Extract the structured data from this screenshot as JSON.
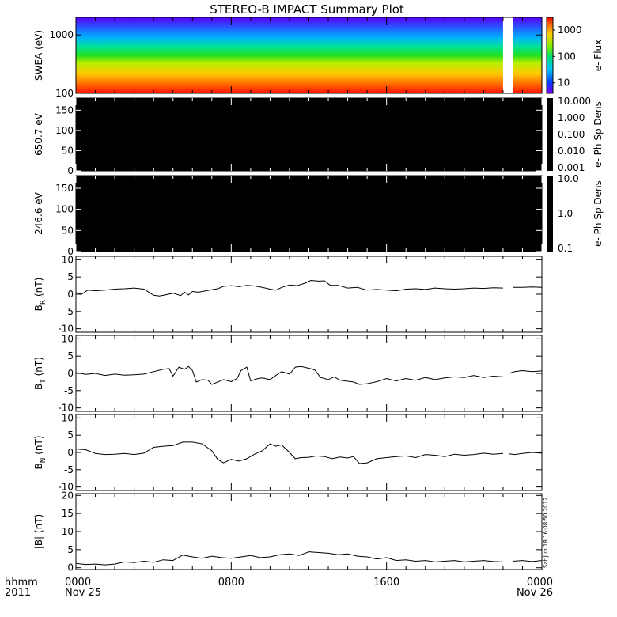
{
  "title": "STEREO-B IMPACT Summary Plot",
  "x_axis": {
    "tick_labels": [
      "0000",
      "0800",
      "1600",
      "0000"
    ],
    "tick_hours": [
      0,
      8,
      16,
      24
    ],
    "minor_every_hours": 1,
    "date_labels": [
      "Nov 25",
      "Nov 26"
    ],
    "date_hours": [
      0,
      24
    ],
    "left_label_top": "hhmm",
    "left_label_bottom": "2011"
  },
  "timestamp": "Sat Jun 18 16:08:50 2012",
  "colors": {
    "spectrogram_low": "#ff0000",
    "spectrogram_high": "#4a00ff",
    "gap": "#ffffff",
    "trace": "#000000"
  },
  "chart_data": [
    {
      "type": "heatmap",
      "name": "swea-spectrogram",
      "ylabel": "SWEA (eV)",
      "yscale": "log",
      "ylim": [
        100,
        2000
      ],
      "ytick_labels": [
        "100",
        "1000"
      ],
      "ytick_values": [
        100,
        1000
      ],
      "colorbar_label": "e- Flux",
      "colorbar_scale": "log",
      "colorbar_range": [
        4,
        3000
      ],
      "colorbar_tick_labels": [
        "10",
        "100",
        "1000"
      ],
      "colorbar_tick_values": [
        10,
        100,
        1000
      ],
      "data_gap_hours": [
        22.0,
        22.5
      ],
      "xlim_hours": [
        0,
        24
      ]
    },
    {
      "type": "heatmap",
      "name": "pitch-angle-650",
      "ylabel": "650.7 eV",
      "ylim": [
        0,
        180
      ],
      "ytick_labels": [
        "0",
        "50",
        "100",
        "150"
      ],
      "ytick_values": [
        0,
        50,
        100,
        150
      ],
      "colorbar_label": "e- Ph Sp Dens",
      "colorbar_tick_labels": [
        "10.000",
        "1.000",
        "0.100",
        "0.010",
        "0.001"
      ],
      "fill": "#000000"
    },
    {
      "type": "heatmap",
      "name": "pitch-angle-246",
      "ylabel": "246.6 eV",
      "ylim": [
        0,
        180
      ],
      "ytick_labels": [
        "0",
        "50",
        "100",
        "150"
      ],
      "ytick_values": [
        0,
        50,
        100,
        150
      ],
      "colorbar_label": "e- Ph Sp Dens",
      "colorbar_tick_labels": [
        "10.0",
        "1.0",
        "0.1"
      ],
      "fill": "#000000"
    },
    {
      "type": "line",
      "name": "br",
      "ylabel": "B",
      "ylabel_sub": "R",
      "ylabel_unit": "(nT)",
      "ylim": [
        -11,
        11
      ],
      "ytick_labels": [
        "-10",
        "-5",
        "0",
        "5",
        "10"
      ],
      "ytick_values": [
        -10,
        -5,
        0,
        5,
        10
      ],
      "x": [
        0,
        0.3,
        0.6,
        1.0,
        1.5,
        2.0,
        2.5,
        3.0,
        3.5,
        4.0,
        4.3,
        4.6,
        5.0,
        5.4,
        5.6,
        5.8,
        6.0,
        6.3,
        6.7,
        7.0,
        7.3,
        7.6,
        8.0,
        8.4,
        8.8,
        9.2,
        9.6,
        10.0,
        10.3,
        10.6,
        11.0,
        11.4,
        11.8,
        12.1,
        12.5,
        12.8,
        13.1,
        13.5,
        14.0,
        14.5,
        15.0,
        15.5,
        16.0,
        16.5,
        17.0,
        17.5,
        18.0,
        18.5,
        19.0,
        19.5,
        20.0,
        20.5,
        21.0,
        21.5,
        22.0,
        null,
        22.5,
        23.0,
        23.5,
        24.0
      ],
      "y": [
        0.5,
        0.0,
        1.2,
        1.0,
        1.2,
        1.5,
        1.6,
        1.8,
        1.5,
        -0.3,
        -0.5,
        -0.2,
        0.3,
        -0.4,
        0.6,
        -0.2,
        0.8,
        0.6,
        1.0,
        1.3,
        1.6,
        2.3,
        2.5,
        2.2,
        2.6,
        2.4,
        2.0,
        1.5,
        1.2,
        2.0,
        2.7,
        2.5,
        3.2,
        4.0,
        3.8,
        3.9,
        2.6,
        2.6,
        1.8,
        2.0,
        1.2,
        1.4,
        1.2,
        1.0,
        1.5,
        1.6,
        1.4,
        1.8,
        1.6,
        1.5,
        1.6,
        1.8,
        1.7,
        1.9,
        1.8,
        null,
        2.0,
        2.0,
        2.1,
        2.0
      ]
    },
    {
      "type": "line",
      "name": "bt",
      "ylabel": "B",
      "ylabel_sub": "T",
      "ylabel_unit": "(nT)",
      "ylim": [
        -11,
        11
      ],
      "ytick_labels": [
        "-10",
        "-5",
        "0",
        "5",
        "10"
      ],
      "ytick_values": [
        -10,
        -5,
        0,
        5,
        10
      ],
      "x": [
        0,
        0.5,
        1.0,
        1.5,
        2.0,
        2.5,
        3.0,
        3.5,
        4.0,
        4.5,
        4.8,
        5.0,
        5.3,
        5.6,
        5.8,
        6.0,
        6.2,
        6.5,
        6.8,
        7.0,
        7.3,
        7.6,
        8.0,
        8.3,
        8.5,
        8.8,
        9.0,
        9.3,
        9.6,
        10.0,
        10.3,
        10.6,
        11.0,
        11.3,
        11.6,
        12.0,
        12.3,
        12.6,
        13.0,
        13.3,
        13.6,
        14.0,
        14.3,
        14.6,
        15.0,
        15.5,
        16.0,
        16.5,
        17.0,
        17.5,
        18.0,
        18.5,
        19.0,
        19.5,
        20.0,
        20.5,
        21.0,
        21.5,
        22.0,
        null,
        22.3,
        22.6,
        23.0,
        23.5,
        24.0
      ],
      "y": [
        0.2,
        -0.3,
        0.0,
        -0.6,
        -0.2,
        -0.5,
        -0.4,
        -0.2,
        0.5,
        1.2,
        1.4,
        -0.8,
        1.8,
        1.2,
        2.0,
        0.8,
        -2.5,
        -1.8,
        -2.0,
        -3.2,
        -2.5,
        -1.8,
        -2.4,
        -1.5,
        0.8,
        1.8,
        -2.2,
        -1.6,
        -1.3,
        -1.8,
        -0.6,
        0.5,
        -0.2,
        1.8,
        2.0,
        1.5,
        1.0,
        -1.2,
        -1.8,
        -1.0,
        -2.0,
        -2.3,
        -2.5,
        -3.2,
        -3.0,
        -2.4,
        -1.5,
        -2.2,
        -1.5,
        -2.0,
        -1.2,
        -1.8,
        -1.3,
        -1.0,
        -1.2,
        -0.6,
        -1.2,
        -0.8,
        -1.0,
        null,
        0.0,
        0.5,
        0.8,
        0.5,
        0.7
      ]
    },
    {
      "type": "line",
      "name": "bn",
      "ylabel": "B",
      "ylabel_sub": "N",
      "ylabel_unit": "(nT)",
      "ylim": [
        -11,
        11
      ],
      "ytick_labels": [
        "-10",
        "-5",
        "0",
        "5",
        "10"
      ],
      "ytick_values": [
        -10,
        -5,
        0,
        5,
        10
      ],
      "x": [
        0,
        0.5,
        1.0,
        1.5,
        2.0,
        2.5,
        3.0,
        3.5,
        4.0,
        4.5,
        5.0,
        5.5,
        6.0,
        6.5,
        7.0,
        7.3,
        7.6,
        8.0,
        8.4,
        8.8,
        9.2,
        9.6,
        10.0,
        10.3,
        10.6,
        11.0,
        11.3,
        11.6,
        12.0,
        12.4,
        12.8,
        13.2,
        13.6,
        14.0,
        14.3,
        14.6,
        15.0,
        15.5,
        16.0,
        16.5,
        17.0,
        17.5,
        18.0,
        18.5,
        19.0,
        19.5,
        20.0,
        20.5,
        21.0,
        21.5,
        22.0,
        null,
        22.3,
        22.6,
        23.0,
        23.5,
        24.0
      ],
      "y": [
        1.0,
        0.8,
        -0.3,
        -0.6,
        -0.5,
        -0.3,
        -0.6,
        -0.2,
        1.5,
        1.8,
        2.0,
        3.0,
        3.0,
        2.5,
        0.5,
        -2.0,
        -3.0,
        -2.0,
        -2.5,
        -1.8,
        -0.5,
        0.5,
        2.5,
        1.8,
        2.2,
        0.0,
        -1.8,
        -1.5,
        -1.4,
        -1.0,
        -1.2,
        -1.8,
        -1.3,
        -1.6,
        -1.2,
        -3.2,
        -3.0,
        -1.8,
        -1.5,
        -1.2,
        -1.0,
        -1.5,
        -0.6,
        -0.8,
        -1.2,
        -0.5,
        -0.8,
        -0.6,
        -0.2,
        -0.5,
        -0.3,
        null,
        -0.4,
        -0.6,
        -0.3,
        0.0,
        -0.2
      ]
    },
    {
      "type": "line",
      "name": "bmag",
      "ylabel": "|B| (nT)",
      "ylim": [
        -0.5,
        20.5
      ],
      "ytick_labels": [
        "0",
        "5",
        "10",
        "15",
        "20"
      ],
      "ytick_values": [
        0,
        5,
        10,
        15,
        20
      ],
      "x": [
        0,
        0.5,
        1.0,
        1.5,
        2.0,
        2.5,
        3.0,
        3.5,
        4.0,
        4.5,
        5.0,
        5.5,
        6.0,
        6.5,
        7.0,
        7.5,
        8.0,
        8.5,
        9.0,
        9.5,
        10.0,
        10.5,
        11.0,
        11.5,
        12.0,
        12.5,
        13.0,
        13.5,
        14.0,
        14.5,
        15.0,
        15.5,
        16.0,
        16.5,
        17.0,
        17.5,
        18.0,
        18.5,
        19.0,
        19.5,
        20.0,
        20.5,
        21.0,
        21.5,
        22.0,
        null,
        22.5,
        23.0,
        23.5,
        24.0
      ],
      "y": [
        1.2,
        0.9,
        1.0,
        0.8,
        1.0,
        1.6,
        1.4,
        1.8,
        1.5,
        2.2,
        2.0,
        3.5,
        3.0,
        2.6,
        3.2,
        2.8,
        2.6,
        3.0,
        3.4,
        2.8,
        3.0,
        3.6,
        3.8,
        3.4,
        4.4,
        4.2,
        4.0,
        3.6,
        3.8,
        3.2,
        3.0,
        2.4,
        2.8,
        2.0,
        2.2,
        1.8,
        2.0,
        1.6,
        1.8,
        2.0,
        1.6,
        1.8,
        2.0,
        1.7,
        1.6,
        null,
        1.8,
        2.0,
        1.7,
        2.0
      ]
    }
  ]
}
